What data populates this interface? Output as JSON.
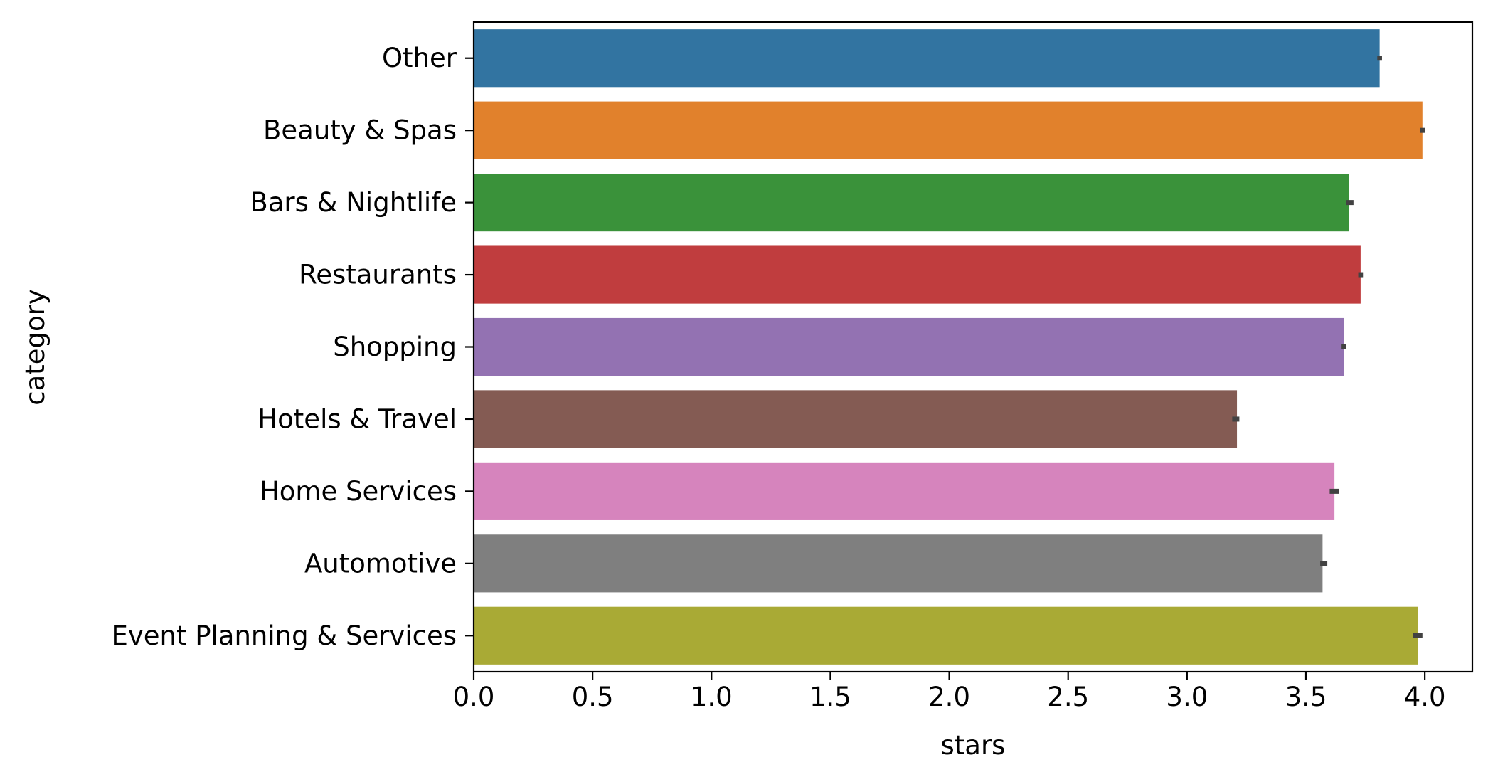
{
  "chart_data": {
    "type": "bar",
    "orientation": "horizontal",
    "title": "",
    "xlabel": "stars",
    "ylabel": "category",
    "xlim": [
      0,
      4.2
    ],
    "xticks": [
      0.0,
      0.5,
      1.0,
      1.5,
      2.0,
      2.5,
      3.0,
      3.5,
      4.0
    ],
    "xtick_labels": [
      "0.0",
      "0.5",
      "1.0",
      "1.5",
      "2.0",
      "2.5",
      "3.0",
      "3.5",
      "4.0"
    ],
    "grid": false,
    "legend": "none",
    "categories": [
      "Other",
      "Beauty & Spas",
      "Bars & Nightlife",
      "Restaurants",
      "Shopping",
      "Hotels & Travel",
      "Home Services",
      "Automotive",
      "Event Planning & Services"
    ],
    "values": [
      3.81,
      3.99,
      3.68,
      3.73,
      3.66,
      3.21,
      3.62,
      3.57,
      3.97
    ],
    "error_bars": [
      [
        3.8,
        3.82
      ],
      [
        3.98,
        4.0
      ],
      [
        3.67,
        3.7
      ],
      [
        3.72,
        3.74
      ],
      [
        3.65,
        3.67
      ],
      [
        3.19,
        3.22
      ],
      [
        3.6,
        3.64
      ],
      [
        3.56,
        3.59
      ],
      [
        3.95,
        3.99
      ]
    ],
    "colors": [
      "#3274a1",
      "#e1812c",
      "#3a923a",
      "#c03d3e",
      "#9372b2",
      "#845b53",
      "#d684bd",
      "#7f7f7f",
      "#a9aa35"
    ]
  }
}
